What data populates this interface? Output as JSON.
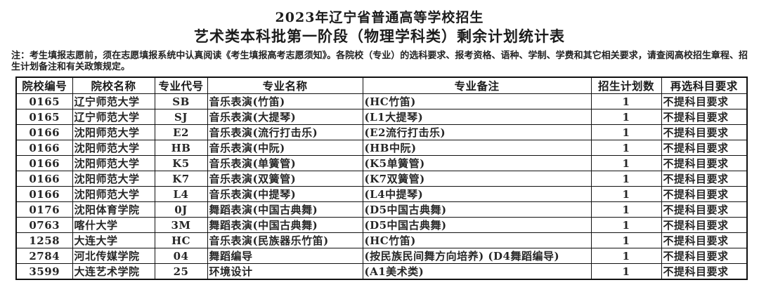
{
  "title": {
    "line1": "2023年辽宁省普通高等学校招生",
    "line2": "艺术类本科批第一阶段（物理学科类）剩余计划统计表"
  },
  "note": "注：考生填报志愿前，须在志愿填报系统中认真阅读《考生填报高考志愿须知》。各院校（专业）的选科要求、报考资格、语种、学制、学费和其它相关要求，请查阅高校招生章程、招生计划备注和有关政策规定。",
  "table": {
    "headers": [
      "院校编号",
      "院校名称",
      "专业代号",
      "专业名称",
      "专业备注",
      "招生计划数",
      "再选科目要求"
    ],
    "rows": [
      [
        "0165",
        "辽宁师范大学",
        "SB",
        "音乐表演(竹笛)",
        "(HC竹笛)",
        "1",
        "不提科目要求"
      ],
      [
        "0165",
        "辽宁师范大学",
        "SJ",
        "音乐表演(大提琴)",
        "(L1大提琴)",
        "1",
        "不提科目要求"
      ],
      [
        "0166",
        "沈阳师范大学",
        "E2",
        "音乐表演(流行打击乐)",
        "(E2流行打击乐)",
        "1",
        "不提科目要求"
      ],
      [
        "0166",
        "沈阳师范大学",
        "HB",
        "音乐表演(中阮)",
        "(HB中阮)",
        "1",
        "不提科目要求"
      ],
      [
        "0166",
        "沈阳师范大学",
        "K5",
        "音乐表演(单簧管)",
        "(K5单簧管)",
        "1",
        "不提科目要求"
      ],
      [
        "0166",
        "沈阳师范大学",
        "K7",
        "音乐表演(双簧管)",
        "(K7双簧管)",
        "1",
        "不提科目要求"
      ],
      [
        "0166",
        "沈阳师范大学",
        "L4",
        "音乐表演(中提琴)",
        "(L4中提琴)",
        "1",
        "不提科目要求"
      ],
      [
        "0176",
        "沈阳体育学院",
        "0J",
        "舞蹈表演(中国古典舞)",
        "(D5中国古典舞)",
        "1",
        "不提科目要求"
      ],
      [
        "0763",
        "喀什大学",
        "3M",
        "舞蹈表演(中国古典舞)",
        "(D5中国古典舞)",
        "1",
        "不提科目要求"
      ],
      [
        "1258",
        "大连大学",
        "HC",
        "音乐表演(民族器乐竹笛)",
        "(HC竹笛)",
        "1",
        "不提科目要求"
      ],
      [
        "2784",
        "河北传媒学院",
        "04",
        "舞蹈编导",
        "(按民族民间舞方向培养) (D4舞蹈编导)",
        "1",
        "不提科目要求"
      ],
      [
        "3599",
        "大连艺术学院",
        "25",
        "环境设计",
        "(A1美术类)",
        "1",
        "不提科目要求"
      ]
    ]
  },
  "colors": {
    "text": "#1c1c1c",
    "border": "#111111",
    "background": "#ffffff"
  }
}
